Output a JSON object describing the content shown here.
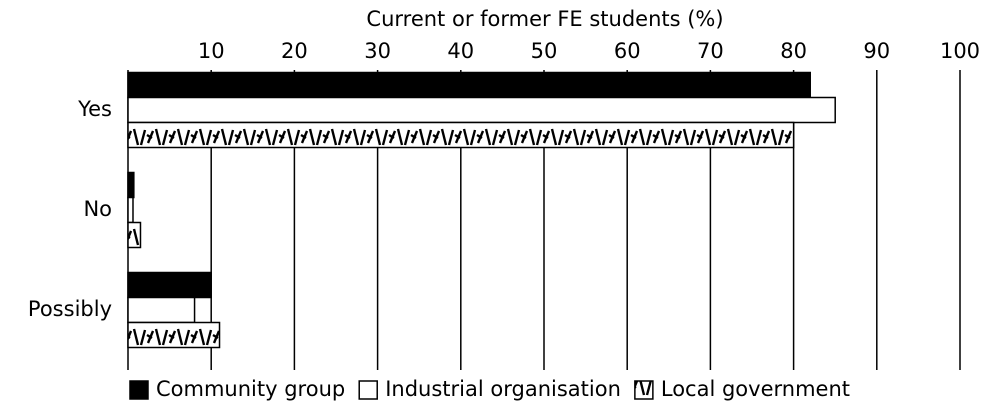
{
  "chart_data": {
    "type": "barh",
    "x_label": "Current or former FE students (%)",
    "categories": [
      "Yes",
      "No",
      "Possibly"
    ],
    "series": [
      {
        "name": "Community group",
        "color": "#000000",
        "values": [
          82,
          0.7,
          10
        ]
      },
      {
        "name": "Industrial organisation",
        "color": "#ffffff",
        "values": [
          85,
          0.6,
          8
        ]
      },
      {
        "name": "Local government",
        "color": "hatch",
        "values": [
          80,
          1.5,
          11
        ]
      }
    ],
    "xlim": [
      0,
      100
    ],
    "xticks": [
      10,
      20,
      30,
      40,
      50,
      60,
      70,
      80,
      90,
      100
    ],
    "grid": true,
    "legend": "bottom"
  }
}
